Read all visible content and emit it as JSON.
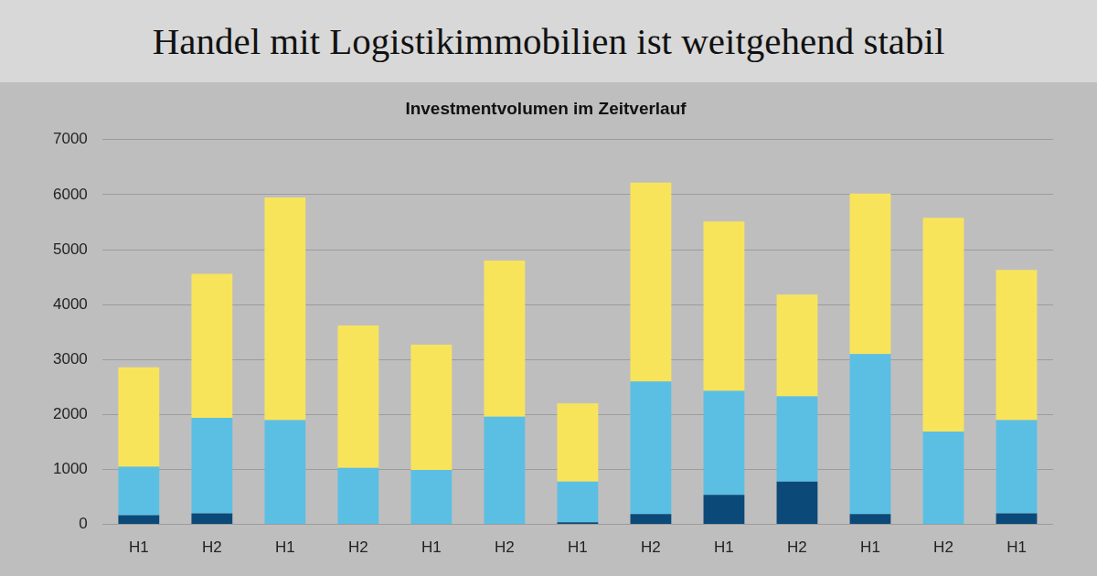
{
  "heading": "Handel mit Logistikimmobilien ist weitgehend stabil",
  "chart_data": {
    "type": "bar",
    "title": "Investmentvolumen im Zeitverlauf",
    "categories": [
      "H1",
      "H2",
      "H1",
      "H2",
      "H1",
      "H2",
      "H1",
      "H2",
      "H1",
      "H2",
      "H1",
      "H2",
      "H1"
    ],
    "series": [
      {
        "color": "#0b4a78",
        "values": [
          170,
          200,
          0,
          0,
          0,
          10,
          40,
          190,
          540,
          780,
          190,
          10,
          200
        ]
      },
      {
        "color": "#5bbfe4",
        "values": [
          880,
          1740,
          1900,
          1030,
          990,
          1950,
          740,
          2410,
          1890,
          1550,
          2910,
          1680,
          1700
        ]
      },
      {
        "color": "#f8e45b",
        "values": [
          1810,
          2620,
          4050,
          2590,
          2280,
          2840,
          1420,
          3620,
          3080,
          1850,
          2920,
          3890,
          2730
        ]
      }
    ],
    "stacked": true,
    "grid": true,
    "ylim": [
      0,
      7000
    ],
    "yticks": [
      0,
      1000,
      2000,
      3000,
      4000,
      5000,
      6000,
      7000
    ]
  }
}
